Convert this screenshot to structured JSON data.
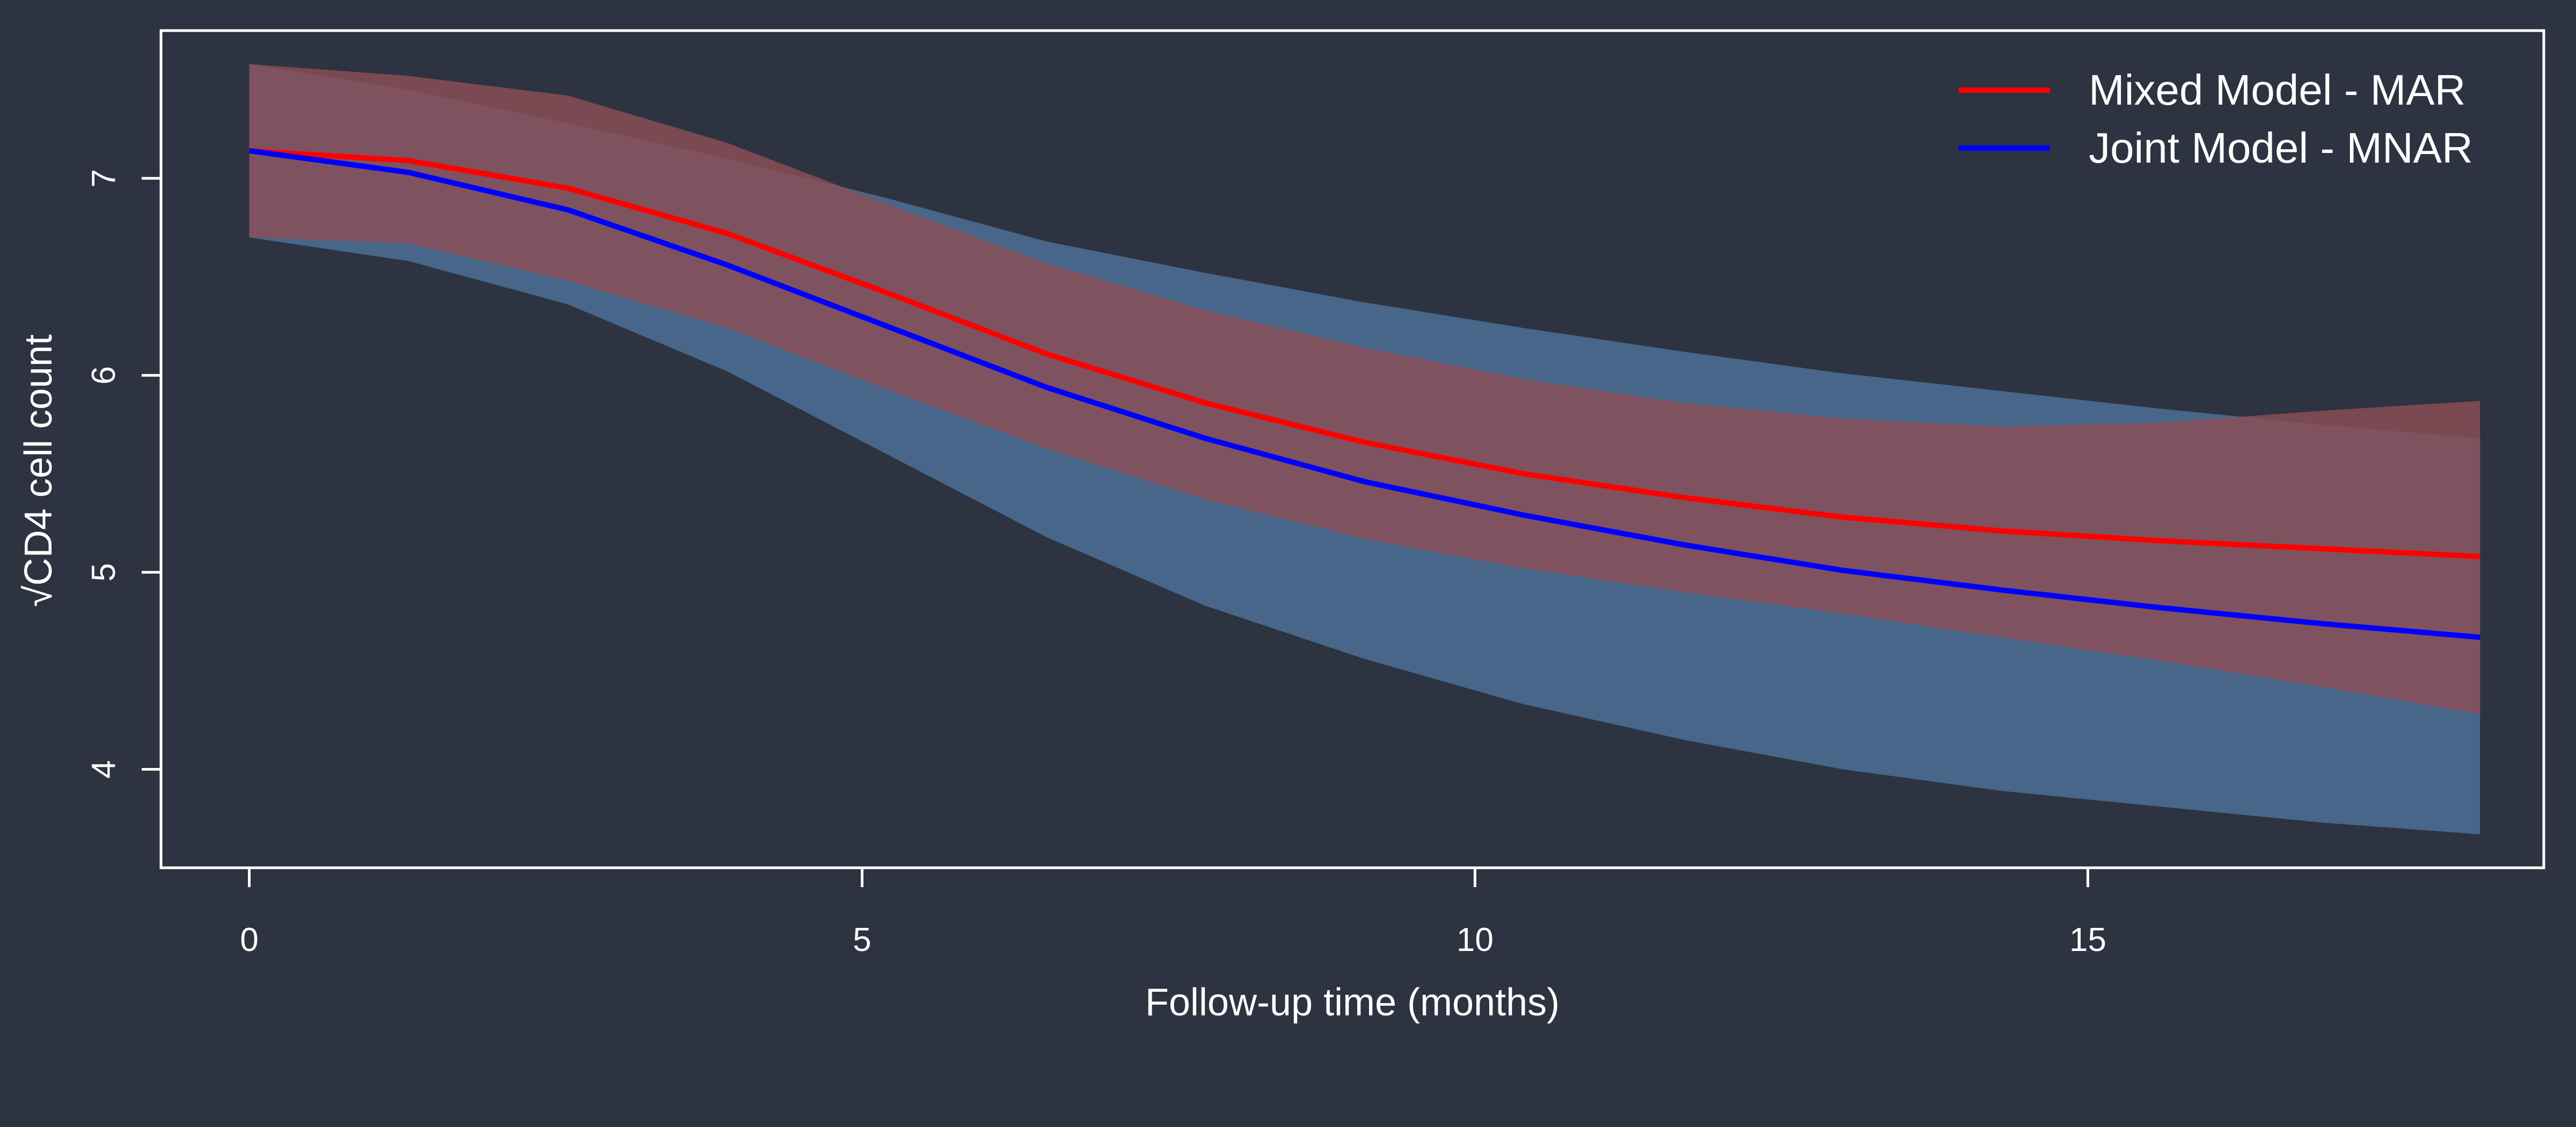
{
  "chart_data": {
    "type": "line",
    "title": "",
    "xlabel": "Follow-up time (months)",
    "ylabel": "√CD4 cell count",
    "xlim": [
      -0.72,
      18.72
    ],
    "ylim": [
      3.5,
      7.75
    ],
    "xticks": [
      0,
      5,
      10,
      15
    ],
    "yticks": [
      4,
      5,
      6,
      7
    ],
    "grid": false,
    "legend_position": "top-right",
    "background": "#2d3340",
    "x": [
      0,
      1.3,
      2.6,
      3.9,
      5.2,
      6.5,
      7.8,
      9.1,
      10.4,
      11.7,
      13.0,
      14.3,
      15.6,
      16.9,
      18.2
    ],
    "series": [
      {
        "name": "Mixed Model - MAR",
        "color": "#ff0000",
        "band_color": "#8b4e56",
        "values": [
          7.14,
          7.09,
          6.95,
          6.72,
          6.42,
          6.11,
          5.86,
          5.66,
          5.5,
          5.38,
          5.28,
          5.21,
          5.16,
          5.12,
          5.08
        ],
        "lower": [
          6.7,
          6.67,
          6.48,
          6.24,
          5.93,
          5.63,
          5.37,
          5.17,
          5.02,
          4.9,
          4.79,
          4.67,
          4.55,
          4.42,
          4.28
        ],
        "upper": [
          7.58,
          7.52,
          7.42,
          7.18,
          6.87,
          6.57,
          6.33,
          6.14,
          5.98,
          5.86,
          5.78,
          5.74,
          5.76,
          5.82,
          5.87
        ]
      },
      {
        "name": "Joint Model - MNAR",
        "color": "#0000ff",
        "band_color": "#4a6a8f",
        "values": [
          7.14,
          7.03,
          6.84,
          6.56,
          6.25,
          5.94,
          5.68,
          5.46,
          5.29,
          5.14,
          5.01,
          4.91,
          4.82,
          4.74,
          4.67
        ],
        "lower": [
          6.7,
          6.58,
          6.36,
          6.02,
          5.6,
          5.18,
          4.83,
          4.56,
          4.33,
          4.15,
          4.0,
          3.89,
          3.81,
          3.73,
          3.67
        ],
        "upper": [
          7.58,
          7.45,
          7.28,
          7.1,
          6.9,
          6.68,
          6.52,
          6.37,
          6.24,
          6.12,
          6.01,
          5.92,
          5.83,
          5.75,
          5.68
        ]
      }
    ]
  }
}
